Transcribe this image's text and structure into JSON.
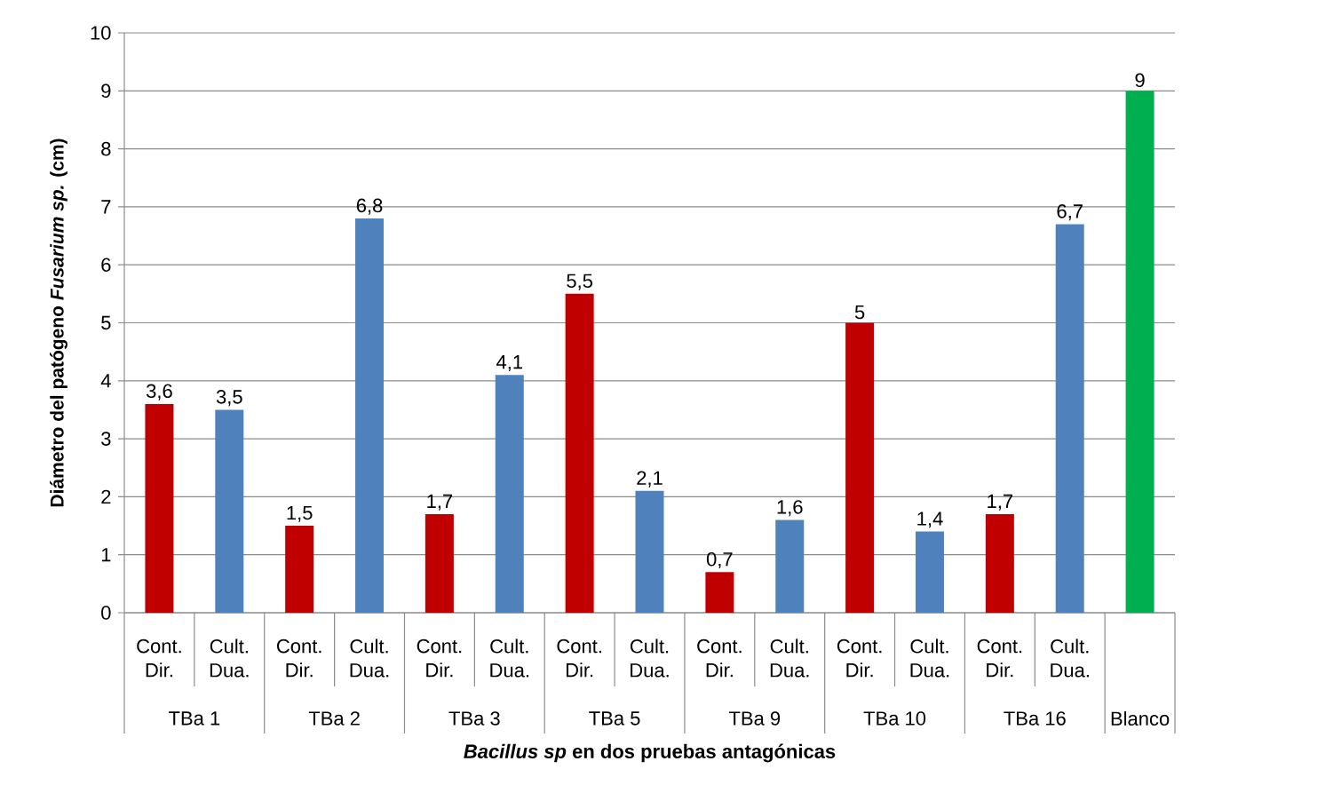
{
  "chart_data": {
    "type": "bar",
    "xlabel": "*Bacillus sp* en dos pruebas antagónicas",
    "ylabel": "Diámetro del patógeno *Fusarium sp.* (cm)",
    "categories": [
      "Cont. Dir.",
      "Cult. Dua.",
      "Cont. Dir.",
      "Cult. Dua.",
      "Cont. Dir.",
      "Cult. Dua.",
      "Cont. Dir.",
      "Cult. Dua.",
      "Cont. Dir.",
      "Cult. Dua.",
      "Cont. Dir.",
      "Cult. Dua.",
      "Cont. Dir.",
      "Cult. Dua.",
      null
    ],
    "values": [
      3.6,
      3.5,
      1.5,
      6.8,
      1.7,
      4.1,
      5.5,
      2.1,
      0.7,
      1.6,
      5,
      1.4,
      1.7,
      6.7,
      9
    ],
    "value_labels": [
      "3,6",
      "3,5",
      "1,5",
      "6,8",
      "1,7",
      "4,1",
      "5,5",
      "2,1",
      "0,7",
      "1,6",
      "5",
      "1,4",
      "1,7",
      "6,7",
      "9"
    ],
    "colors": [
      "#c00000",
      "#4f81bd",
      "#c00000",
      "#4f81bd",
      "#c00000",
      "#4f81bd",
      "#c00000",
      "#4f81bd",
      "#c00000",
      "#4f81bd",
      "#c00000",
      "#4f81bd",
      "#c00000",
      "#4f81bd",
      "#00b050"
    ],
    "annotations": [
      "TBa 1",
      "TBa 2",
      "TBa 3",
      "TBa 5",
      "TBa 9",
      "TBa 10",
      "TBa 16",
      "Blanco"
    ],
    "ylim": [
      0,
      10
    ],
    "yticks": [
      0,
      1,
      2,
      3,
      4,
      5,
      6,
      7,
      8,
      9,
      10
    ],
    "grid": "y"
  }
}
